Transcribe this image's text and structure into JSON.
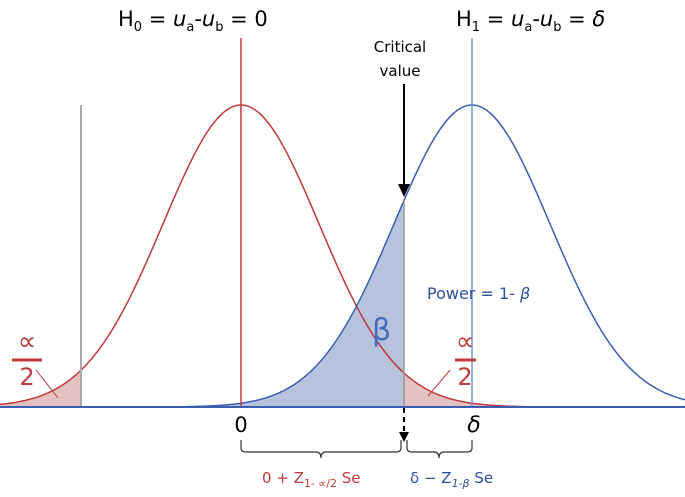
{
  "hypotheses": {
    "null": [
      "H",
      "0",
      " = ",
      "u",
      "a",
      "-",
      "u",
      "b",
      " = 0"
    ],
    "alternative": [
      "H",
      "1",
      " = ",
      "u",
      "a",
      "-",
      "u",
      "b",
      " = ",
      "δ"
    ]
  },
  "critical_value": [
    "Critical",
    "value"
  ],
  "power": [
    "Power = 1- ",
    "β"
  ],
  "beta": "β",
  "alpha_half_left": {
    "numerator": "∝",
    "denominator": "2"
  },
  "alpha_half_right": {
    "numerator": "∝",
    "denominator": "2"
  },
  "axis_labels": {
    "zero": "0",
    "delta": "δ"
  },
  "brackets": {
    "left": [
      "0 + Z",
      "1- ∝/2",
      " Se"
    ],
    "right": [
      "δ − Z",
      "1-β",
      " Se"
    ]
  }
}
